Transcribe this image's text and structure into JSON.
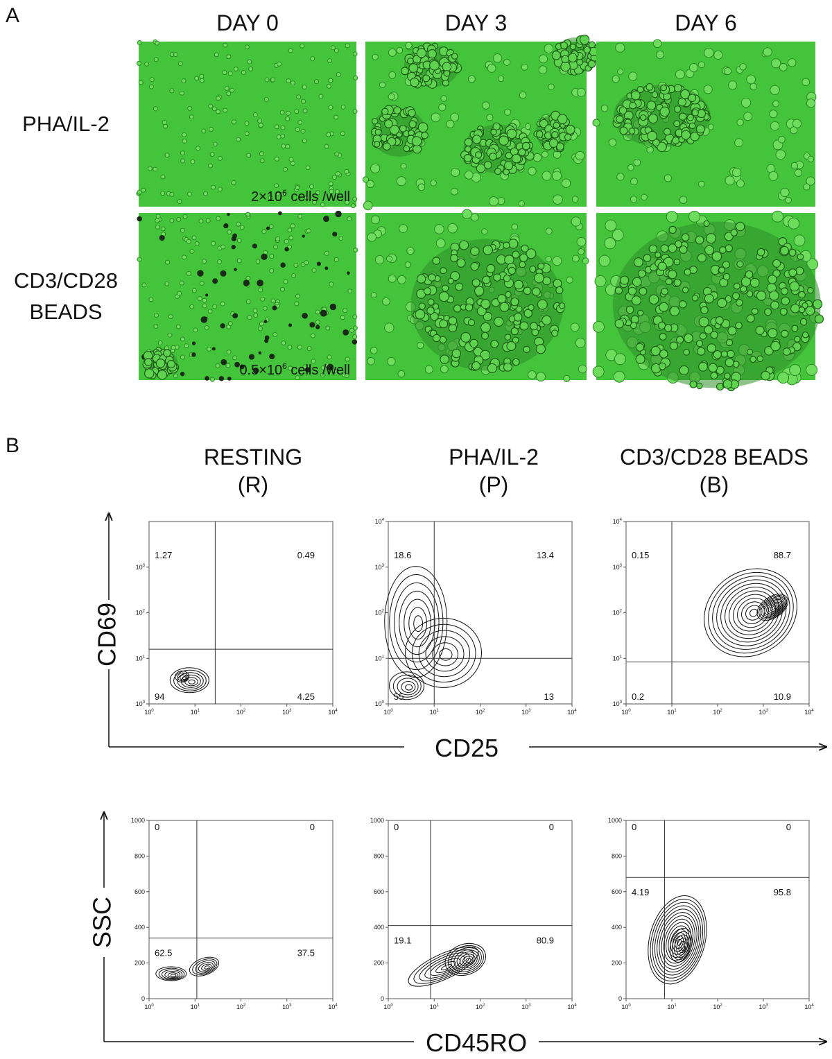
{
  "panel_a": {
    "label": "A",
    "columns": [
      "DAY 0",
      "DAY 3",
      "DAY 6"
    ],
    "rows": [
      [
        "PHA/IL-2"
      ],
      [
        "CD3/CD28",
        "BEADS"
      ]
    ],
    "captions": [
      {
        "text": "2×10",
        "sup": "6",
        "rest": " cells /well"
      },
      {
        "text": "0.5×10",
        "sup": "6",
        "rest": " cells /well"
      }
    ]
  },
  "panel_b": {
    "label": "B",
    "columns": [
      [
        "RESTING",
        "(R)"
      ],
      [
        "PHA/IL-2",
        "(P)"
      ],
      [
        "CD3/CD28 BEADS",
        "(B)"
      ]
    ],
    "rows": [
      {
        "y_axis": "CD69",
        "x_axis": "CD25",
        "plots": [
          {
            "yticks": [
              {
                "base": "10",
                "exp": "0"
              },
              {
                "base": "10",
                "exp": "1"
              },
              {
                "base": "10",
                "exp": "2"
              },
              {
                "base": "10",
                "exp": "3"
              }
            ],
            "xticks": [
              {
                "base": "10",
                "exp": "0"
              },
              {
                "base": "10",
                "exp": "1"
              },
              {
                "base": "10",
                "exp": "2"
              },
              {
                "base": "10",
                "exp": "3"
              },
              {
                "base": "10",
                "exp": "4"
              }
            ],
            "quadrants": {
              "upper_left": "1.27",
              "upper_right": "0.49",
              "lower_left": "94",
              "lower_right": "4.25"
            }
          },
          {
            "yticks": [
              {
                "base": "10",
                "exp": "0"
              },
              {
                "base": "10",
                "exp": "1"
              },
              {
                "base": "10",
                "exp": "2"
              },
              {
                "base": "10",
                "exp": "3"
              },
              {
                "base": "10",
                "exp": "4"
              }
            ],
            "xticks": [
              {
                "base": "10",
                "exp": "0"
              },
              {
                "base": "10",
                "exp": "1"
              },
              {
                "base": "10",
                "exp": "2"
              },
              {
                "base": "10",
                "exp": "3"
              },
              {
                "base": "10",
                "exp": "4"
              }
            ],
            "quadrants": {
              "upper_left": "18.6",
              "upper_right": "13.4",
              "lower_left": "55",
              "lower_right": "13"
            }
          },
          {
            "yticks": [
              {
                "base": "10",
                "exp": "0"
              },
              {
                "base": "10",
                "exp": "1"
              },
              {
                "base": "10",
                "exp": "2"
              },
              {
                "base": "10",
                "exp": "3"
              },
              {
                "base": "10",
                "exp": "4"
              }
            ],
            "xticks": [
              {
                "base": "10",
                "exp": "0"
              },
              {
                "base": "10",
                "exp": "1"
              },
              {
                "base": "10",
                "exp": "2"
              },
              {
                "base": "10",
                "exp": "3"
              },
              {
                "base": "10",
                "exp": "4"
              }
            ],
            "quadrants": {
              "upper_left": "0.15",
              "upper_right": "88.7",
              "lower_left": "0.2",
              "lower_right": "10.9"
            }
          }
        ]
      },
      {
        "y_axis": "SSC",
        "x_axis": "CD45RO",
        "plots": [
          {
            "yticks": [
              0,
              200,
              400,
              600,
              800,
              1000
            ],
            "xticks": [
              {
                "base": "10",
                "exp": "0"
              },
              {
                "base": "10",
                "exp": "1"
              },
              {
                "base": "10",
                "exp": "2"
              },
              {
                "base": "10",
                "exp": "3"
              },
              {
                "base": "10",
                "exp": "4"
              }
            ],
            "quadrants": {
              "upper_left": "0",
              "upper_right": "0",
              "lower_left": "62.5",
              "lower_right": "37.5"
            }
          },
          {
            "yticks": [
              0,
              200,
              400,
              600,
              800,
              1000
            ],
            "xticks": [
              {
                "base": "10",
                "exp": "0"
              },
              {
                "base": "10",
                "exp": "1"
              },
              {
                "base": "10",
                "exp": "2"
              },
              {
                "base": "10",
                "exp": "3"
              },
              {
                "base": "10",
                "exp": "4"
              }
            ],
            "quadrants": {
              "upper_left": "0",
              "upper_right": "0",
              "lower_left": "19.1",
              "lower_right": "80.9"
            }
          },
          {
            "yticks": [
              0,
              200,
              400,
              600,
              800,
              1000
            ],
            "xticks": [
              {
                "base": "10",
                "exp": "0"
              },
              {
                "base": "10",
                "exp": "1"
              },
              {
                "base": "10",
                "exp": "2"
              },
              {
                "base": "10",
                "exp": "3"
              },
              {
                "base": "10",
                "exp": "4"
              }
            ],
            "quadrants": {
              "upper_left": "0",
              "upper_right": "0",
              "lower_left": "4.19",
              "lower_right": "95.8"
            }
          }
        ]
      }
    ]
  }
}
